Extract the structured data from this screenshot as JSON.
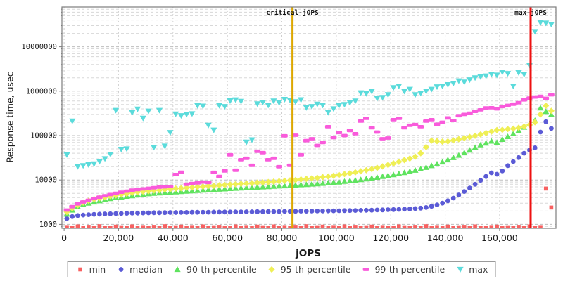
{
  "chart_data": {
    "type": "scatter",
    "title": "",
    "xlabel": "jOPS",
    "ylabel": "Response time, usec",
    "y_scale": "log",
    "grid": true,
    "legend_position": "bottom",
    "xlim": [
      -800,
      180700
    ],
    "ylim": [
      815,
      78700000
    ],
    "x_ticks": [
      0,
      20000,
      40000,
      60000,
      80000,
      100000,
      120000,
      140000,
      160000
    ],
    "x_tick_labels": [
      "0",
      "20,000",
      "40,000",
      "60,000",
      "80,000",
      "100,000",
      "120,000",
      "140,000",
      "160,000"
    ],
    "y_ticks": [
      1000,
      10000,
      100000,
      1000000,
      10000000
    ],
    "y_tick_labels": [
      "1000",
      "10000",
      "100000",
      "1000000",
      "10000000"
    ],
    "reference_lines": [
      {
        "label": "critical-jOPS",
        "x": 83900,
        "color": "#dda800"
      },
      {
        "label": "max-jOPS",
        "x": 171400,
        "color": "#ee1111"
      }
    ],
    "x": [
      1000,
      3000,
      5000,
      7000,
      9000,
      11000,
      13000,
      15000,
      17000,
      19000,
      21000,
      23000,
      25000,
      27000,
      29000,
      31000,
      33000,
      35000,
      37000,
      39000,
      41000,
      43000,
      45000,
      47000,
      49000,
      51000,
      53000,
      55000,
      57000,
      59000,
      61000,
      63000,
      65000,
      67000,
      69000,
      71000,
      73000,
      75000,
      77000,
      79000,
      81000,
      83000,
      85000,
      87000,
      89000,
      91000,
      93000,
      95000,
      97000,
      99000,
      101000,
      103000,
      105000,
      107000,
      109000,
      111000,
      113000,
      115000,
      117000,
      119000,
      121000,
      123000,
      125000,
      127000,
      129000,
      131000,
      133000,
      135000,
      137000,
      139000,
      141000,
      143000,
      145000,
      147000,
      149000,
      151000,
      153000,
      155000,
      157000,
      159000,
      161000,
      163000,
      165000,
      167000,
      169000,
      171000,
      173000,
      175000,
      177000,
      179000
    ],
    "series": [
      {
        "name": "min",
        "marker": "square",
        "color": "#f86060",
        "values": [
          870,
          820,
          900,
          840,
          880,
          830,
          910,
          850,
          820,
          890,
          860,
          830,
          900,
          840,
          870,
          820,
          880,
          850,
          910,
          830,
          860,
          890,
          820,
          870,
          840,
          900,
          830,
          860,
          880,
          820,
          850,
          900,
          840,
          870,
          830,
          890,
          860,
          820,
          900,
          850,
          870,
          830,
          880,
          840,
          910,
          820,
          860,
          890,
          830,
          870,
          850,
          900,
          820,
          880,
          840,
          860,
          890,
          830,
          870,
          850,
          820,
          900,
          860,
          840,
          880,
          830,
          910,
          850,
          870,
          820,
          890,
          840,
          860,
          880,
          830,
          900,
          850,
          820,
          870,
          890,
          840,
          860,
          830,
          880,
          850,
          900,
          820,
          870,
          6400,
          2400
        ]
      },
      {
        "name": "median",
        "marker": "circle",
        "color": "#5b5bd6",
        "values": [
          1350,
          1500,
          1580,
          1620,
          1650,
          1680,
          1700,
          1720,
          1730,
          1750,
          1760,
          1780,
          1790,
          1800,
          1810,
          1820,
          1830,
          1830,
          1840,
          1850,
          1850,
          1860,
          1860,
          1870,
          1870,
          1880,
          1880,
          1890,
          1890,
          1900,
          1900,
          1910,
          1910,
          1920,
          1920,
          1930,
          1930,
          1940,
          1950,
          1950,
          1960,
          1960,
          1970,
          1980,
          1980,
          1990,
          2000,
          2000,
          2010,
          2020,
          2030,
          2040,
          2050,
          2060,
          2070,
          2080,
          2090,
          2110,
          2120,
          2140,
          2160,
          2180,
          2200,
          2230,
          2270,
          2320,
          2400,
          2550,
          2750,
          3000,
          3400,
          3900,
          4600,
          5500,
          6600,
          8000,
          9800,
          12000,
          14500,
          13500,
          16000,
          21000,
          26000,
          32000,
          40000,
          47000,
          53000,
          120000,
          205000,
          145000
        ]
      },
      {
        "name": "90-th percentile",
        "marker": "triangle-up",
        "color": "#5fe35f",
        "values": [
          1700,
          2100,
          2500,
          2800,
          3000,
          3200,
          3400,
          3600,
          3800,
          4000,
          4100,
          4300,
          4400,
          4600,
          4700,
          4900,
          5000,
          5100,
          5200,
          5300,
          5400,
          5500,
          5600,
          5700,
          5800,
          5900,
          6000,
          6100,
          6200,
          6300,
          6400,
          6500,
          6600,
          6700,
          6800,
          6900,
          7000,
          7100,
          7200,
          7300,
          7400,
          7500,
          7600,
          7800,
          7900,
          8100,
          8200,
          8400,
          8600,
          8800,
          9000,
          9300,
          9600,
          9900,
          10200,
          10600,
          11000,
          11500,
          12000,
          12600,
          13200,
          13900,
          14700,
          15600,
          16600,
          17800,
          19200,
          21000,
          23000,
          25500,
          28500,
          32000,
          36000,
          41000,
          47000,
          54000,
          62000,
          68000,
          75000,
          70000,
          82000,
          95000,
          110000,
          130000,
          155000,
          185000,
          220000,
          420000,
          350000,
          300000
        ]
      },
      {
        "name": "95-th percentile",
        "marker": "diamond",
        "color": "#efef55",
        "values": [
          1900,
          2300,
          2700,
          3100,
          3400,
          3700,
          3900,
          4100,
          4300,
          4500,
          4700,
          4900,
          5100,
          5300,
          5500,
          5600,
          5800,
          5900,
          6100,
          6200,
          6400,
          6500,
          6700,
          6800,
          7000,
          7100,
          7300,
          7400,
          7600,
          7700,
          7900,
          8000,
          8200,
          8300,
          8500,
          8700,
          8800,
          9000,
          9200,
          9400,
          9600,
          9800,
          10000,
          10300,
          10600,
          10900,
          11200,
          11600,
          12000,
          12500,
          13000,
          13600,
          14200,
          14900,
          15700,
          16600,
          17600,
          18800,
          20200,
          21800,
          23600,
          25700,
          28000,
          30500,
          33500,
          40000,
          55000,
          77000,
          75000,
          73000,
          74000,
          78000,
          83000,
          88000,
          93000,
          99000,
          106000,
          114000,
          123000,
          133000,
          135000,
          140000,
          143000,
          150000,
          160000,
          175000,
          200000,
          300000,
          470000,
          360000
        ]
      },
      {
        "name": "99-th percentile",
        "marker": "hbar",
        "color": "#f95bdb",
        "values": [
          2100,
          2500,
          2900,
          3200,
          3500,
          3800,
          4100,
          4400,
          4700,
          5000,
          5300,
          5600,
          5900,
          6100,
          6300,
          6500,
          6700,
          6900,
          7000,
          7100,
          13300,
          15000,
          8000,
          8300,
          8600,
          9000,
          8800,
          14900,
          12000,
          16000,
          37000,
          16600,
          28600,
          30800,
          21400,
          44400,
          41200,
          28600,
          30800,
          19900,
          99000,
          21400,
          102000,
          37000,
          77000,
          85000,
          60000,
          70000,
          158000,
          90000,
          117000,
          100000,
          130000,
          110000,
          212000,
          245000,
          150000,
          120000,
          85000,
          88000,
          228000,
          245000,
          150000,
          171000,
          177000,
          158000,
          212000,
          228000,
          180000,
          200000,
          250000,
          220000,
          280000,
          300000,
          320000,
          350000,
          380000,
          420000,
          424000,
          400000,
          450000,
          480000,
          509000,
          550000,
          636000,
          700000,
          738000,
          766000,
          690000,
          828000
        ]
      },
      {
        "name": "max",
        "marker": "triangle-down",
        "color": "#5bdbdb",
        "values": [
          37000,
          212000,
          20000,
          21000,
          22000,
          23000,
          26000,
          30000,
          38000,
          368000,
          49000,
          50000,
          330000,
          395000,
          246000,
          355000,
          54000,
          368000,
          58000,
          117000,
          306000,
          280000,
          300000,
          310000,
          473000,
          460000,
          171000,
          133000,
          473000,
          450000,
          605000,
          636000,
          590000,
          71000,
          80000,
          520000,
          560000,
          480000,
          600000,
          550000,
          650000,
          620000,
          580000,
          640000,
          424000,
          450000,
          509000,
          480000,
          330000,
          400000,
          473000,
          500000,
          550000,
          600000,
          917000,
          880000,
          990000,
          690000,
          720000,
          830000,
          1200000,
          1300000,
          990000,
          1100000,
          830000,
          900000,
          1000000,
          1100000,
          1250000,
          1300000,
          1400000,
          1500000,
          1700000,
          1600000,
          1800000,
          2000000,
          2100000,
          2200000,
          2400000,
          2300000,
          2700000,
          2500000,
          1300000,
          2600000,
          2400000,
          3800000,
          22000000,
          35000000,
          34000000,
          32000000
        ]
      }
    ]
  }
}
